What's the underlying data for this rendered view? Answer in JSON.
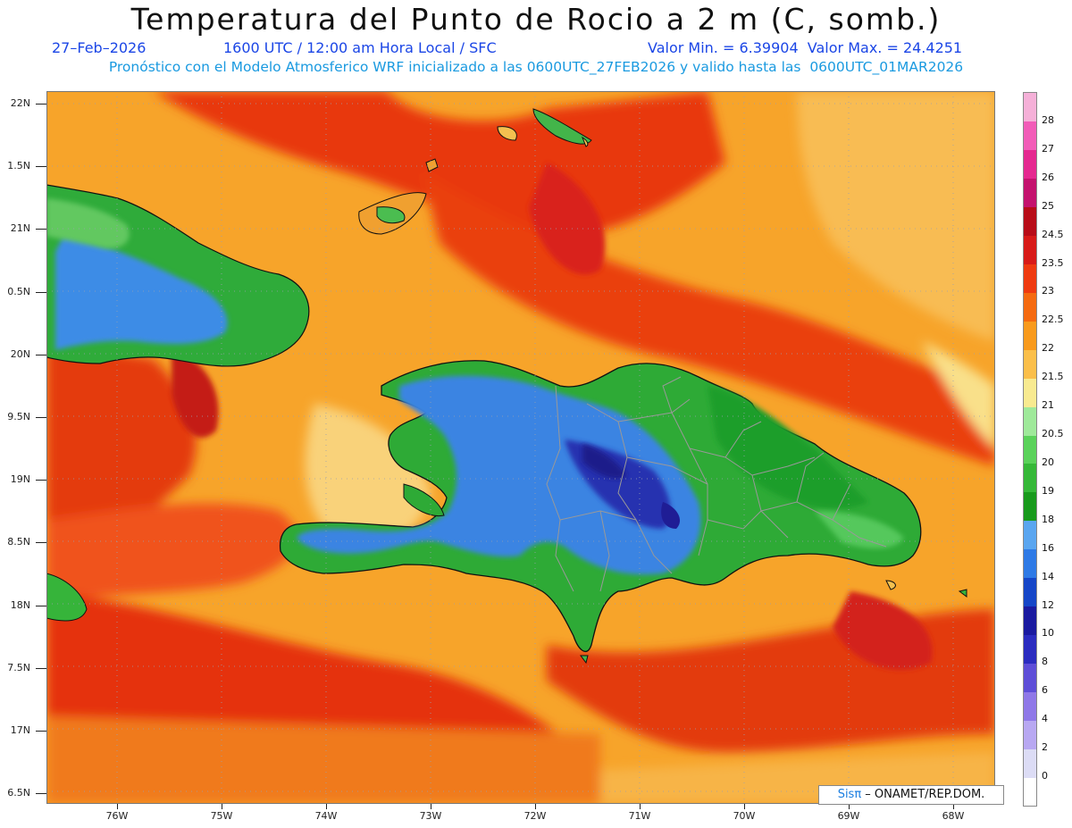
{
  "header": {
    "title": "Temperatura del Punto de Rocio a 2 m (C, somb.)",
    "date": "27–Feb–2026",
    "time": "1600 UTC / 12:00 am Hora Local / SFC",
    "minmax": "Valor Min. = 6.39904  Valor Max. = 24.4251",
    "model": "Pronóstico con el Modelo Atmosferico WRF inicializado a las 0600UTC_27FEB2026 y valido hasta las  0600UTC_01MAR2026"
  },
  "map": {
    "lat_labels": [
      "22N",
      "1.5N",
      "21N",
      "0.5N",
      "20N",
      "9.5N",
      "19N",
      "8.5N",
      "18N",
      "7.5N",
      "17N",
      "6.5N"
    ],
    "lon_labels": [
      "76W",
      "75W",
      "74W",
      "73W",
      "72W",
      "71W",
      "70W",
      "69W",
      "68W"
    ],
    "extent": {
      "lon_min": -76.65,
      "lon_max": -67.6,
      "lat_min": 16.4,
      "lat_max": 22.1
    }
  },
  "legend": {
    "levels": [
      "0",
      "2",
      "4",
      "6",
      "8",
      "10",
      "12",
      "14",
      "16",
      "18",
      "19",
      "20",
      "20.5",
      "21",
      "21.5",
      "22",
      "22.5",
      "23",
      "23.5",
      "24.5",
      "25",
      "26",
      "27",
      "28"
    ],
    "colors": [
      "#ffffff",
      "#dcdcf5",
      "#b8a8f2",
      "#8f78e8",
      "#5e4ed8",
      "#2b2cc0",
      "#1a1aa0",
      "#1546c8",
      "#2e7ae6",
      "#5aa6f0",
      "#189a1c",
      "#35b838",
      "#5ad25a",
      "#9fe99a",
      "#f8ea90",
      "#fbbf4a",
      "#f99a1c",
      "#f56a10",
      "#ef3a10",
      "#d81a18",
      "#b80c18",
      "#c4126e",
      "#e52890",
      "#f25cb8",
      "#f5b0d8"
    ]
  },
  "credit": {
    "sis": "Sisπ",
    "rest": " – ONAMET/REP.DOM."
  }
}
